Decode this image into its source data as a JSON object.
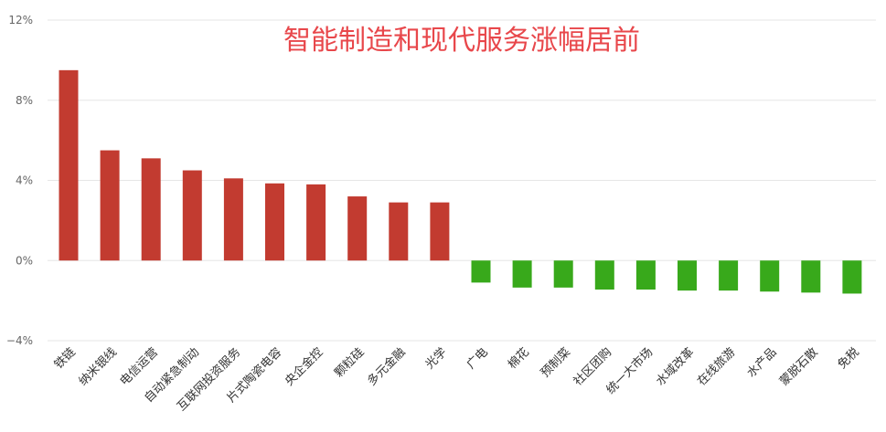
{
  "chart_data": {
    "type": "bar",
    "title": "智能制造和现代服务涨幅居前",
    "categories": [
      "铁链",
      "纳米银线",
      "电信运营",
      "自动紧急制动",
      "互联网投资服务",
      "片式陶瓷电容",
      "央企金控",
      "颗粒硅",
      "多元金融",
      "光学",
      "广电",
      "棉花",
      "预制菜",
      "社区团购",
      "统一大市场",
      "水域改革",
      "在线旅游",
      "水产品",
      "蒙脱石散",
      "免税"
    ],
    "values": [
      9.5,
      5.5,
      5.1,
      4.5,
      4.1,
      3.85,
      3.8,
      3.2,
      2.9,
      2.9,
      -1.1,
      -1.35,
      -1.35,
      -1.45,
      -1.45,
      -1.5,
      -1.5,
      -1.55,
      -1.6,
      -1.65
    ],
    "ylim": [
      -4,
      12
    ],
    "yticks": [
      "−4%",
      "0%",
      "4%",
      "8%",
      "12%"
    ],
    "ytick_values": [
      -4,
      0,
      4,
      8,
      12
    ],
    "grid": true,
    "colors": {
      "positive": "#c23b30",
      "negative": "#38a91b",
      "grid": "#e6e6e6",
      "title": "#e8474b"
    }
  }
}
